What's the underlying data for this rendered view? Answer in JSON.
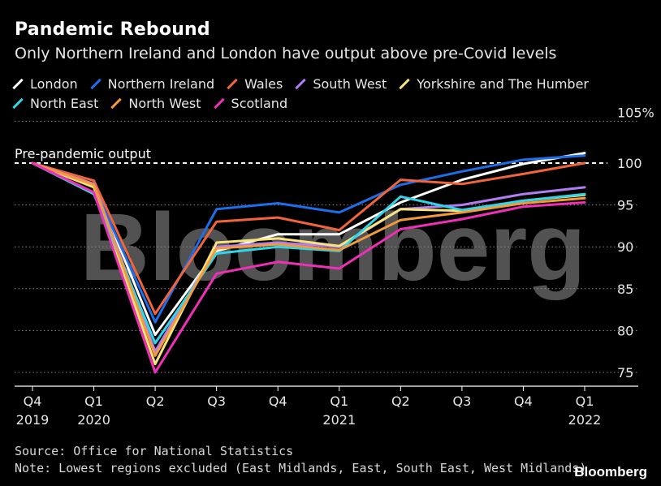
{
  "header": {
    "title": "Pandemic Rebound",
    "subtitle": "Only Northern Ireland and London have output above pre-Covid levels"
  },
  "footer": {
    "source": "Source: Office for National Statistics",
    "note": "Note: Lowest regions excluded (East Midlands, East, South East, West Midlands)",
    "brand": "Bloomberg"
  },
  "watermark": "Bloomberg",
  "chart_data": {
    "type": "line",
    "title": "Pandemic Rebound",
    "subtitle": "Only Northern Ireland and London have output above pre-Covid levels",
    "x": [
      "Q4 2019",
      "Q1 2020",
      "Q2 2020",
      "Q3 2020",
      "Q4 2020",
      "Q1 2021",
      "Q2 2021",
      "Q3 2021",
      "Q4 2021",
      "Q1 2022"
    ],
    "x_tick_labels": [
      {
        "line1": "Q4",
        "line2": "2019"
      },
      {
        "line1": "Q1",
        "line2": "2020"
      },
      {
        "line1": "Q2",
        "line2": ""
      },
      {
        "line1": "Q3",
        "line2": ""
      },
      {
        "line1": "Q4",
        "line2": ""
      },
      {
        "line1": "Q1",
        "line2": "2021"
      },
      {
        "line1": "Q2",
        "line2": ""
      },
      {
        "line1": "Q3",
        "line2": ""
      },
      {
        "line1": "Q4",
        "line2": ""
      },
      {
        "line1": "Q1",
        "line2": "2022"
      }
    ],
    "ylim": [
      73,
      107
    ],
    "y_ticks": [
      75,
      80,
      85,
      90,
      95,
      100,
      105
    ],
    "y_tick_labels": [
      "75",
      "80",
      "85",
      "90",
      "95",
      "100",
      "105%"
    ],
    "y_axis_side": "right",
    "grid": true,
    "reference_line": {
      "value": 100,
      "label": "Pre-pandemic output",
      "style": "dashed"
    },
    "legend_placement": "top",
    "series": [
      {
        "name": "London",
        "color": "#ffffff",
        "values": [
          100,
          97.5,
          79.5,
          89.5,
          91.5,
          91.5,
          95.3,
          98,
          99.9,
          101.2
        ]
      },
      {
        "name": "Northern Ireland",
        "color": "#1d6ee8",
        "values": [
          100,
          97.2,
          81,
          94.5,
          95.2,
          94.1,
          97.4,
          99,
          100.4,
          100.9
        ]
      },
      {
        "name": "Wales",
        "color": "#f2643a",
        "values": [
          100,
          97.9,
          82,
          93,
          93.5,
          92,
          98,
          97.5,
          98.7,
          100
        ]
      },
      {
        "name": "South West",
        "color": "#b27cf2",
        "values": [
          100,
          97.5,
          77.5,
          90,
          90.5,
          90,
          94.5,
          95,
          96.3,
          97.1
        ]
      },
      {
        "name": "Yorkshire and The Humber",
        "color": "#f7e37a",
        "values": [
          100,
          97.1,
          76,
          90.5,
          91,
          90.1,
          94.5,
          94.3,
          95.5,
          96.2
        ]
      },
      {
        "name": "North East",
        "color": "#2fd5e8",
        "values": [
          100,
          96.3,
          78.5,
          89.2,
          90,
          89.5,
          96,
          94.4,
          95.5,
          96.3
        ]
      },
      {
        "name": "North West",
        "color": "#f49a3c",
        "values": [
          100,
          97.4,
          77,
          89.8,
          90.3,
          89.6,
          93.2,
          94.1,
          95.2,
          95.8
        ]
      },
      {
        "name": "Scotland",
        "color": "#f02fb7",
        "values": [
          100,
          96.5,
          75,
          86.8,
          88.2,
          87.4,
          92.1,
          93.3,
          94.8,
          95.3
        ]
      }
    ]
  }
}
